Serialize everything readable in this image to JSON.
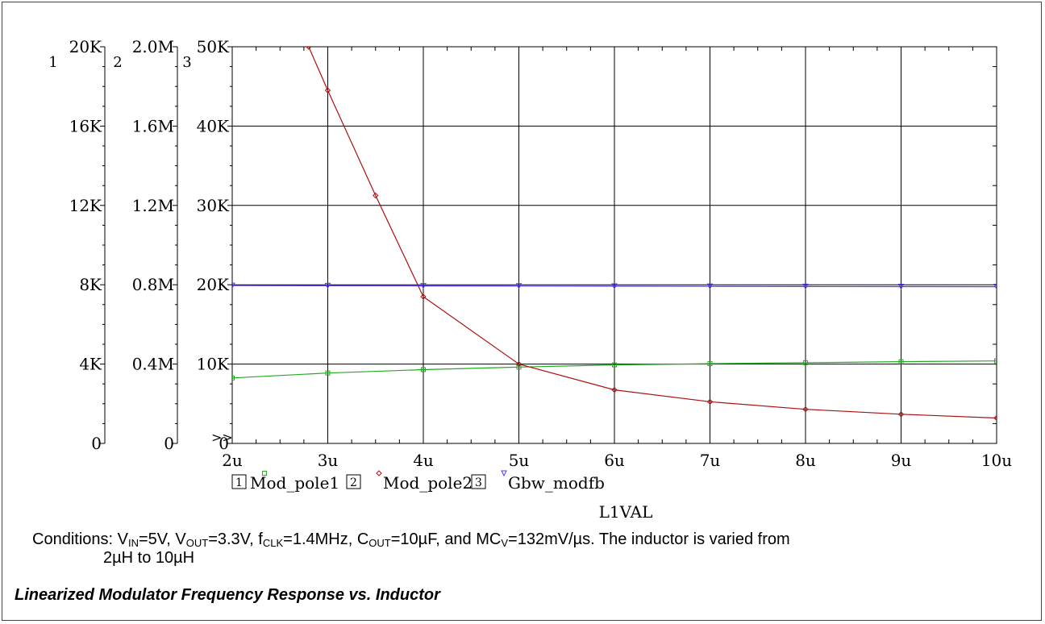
{
  "chart_data": {
    "type": "line",
    "xlabel": "L1VAL",
    "x_ticks": [
      "2u",
      "3u",
      "4u",
      "5u",
      "6u",
      "7u",
      "8u",
      "9u",
      "10u"
    ],
    "xlim": [
      2,
      10
    ],
    "x_unit_multiplier": 1e-06,
    "grid": true,
    "axes": [
      {
        "index_label": "1",
        "ticks": [
          "0",
          "4K",
          "8K",
          "12K",
          "16K",
          "20K"
        ],
        "ylim": [
          0,
          20000
        ]
      },
      {
        "index_label": "2",
        "ticks": [
          "0",
          "0.4M",
          "0.8M",
          "1.2M",
          "1.6M",
          "2.0M"
        ],
        "ylim": [
          0,
          2000000
        ]
      },
      {
        "index_label": "3",
        "ticks": [
          "0",
          "10K",
          "20K",
          "30K",
          "40K",
          "50K"
        ],
        "ylim": [
          0,
          50000
        ]
      }
    ],
    "axis_marker": ">>",
    "series": [
      {
        "name": "Mod_pole1",
        "legend_index": "1",
        "axis": 1,
        "color": "#22aa22",
        "marker": "square",
        "x": [
          2,
          3,
          4,
          5,
          6,
          7,
          8,
          9,
          10
        ],
        "y": [
          3300,
          3550,
          3720,
          3850,
          3960,
          4020,
          4070,
          4120,
          4160
        ]
      },
      {
        "name": "Mod_pole2",
        "legend_index": "2",
        "axis": 2,
        "color": "#aa1111",
        "marker": "diamond",
        "x": [
          2.8,
          3,
          3.5,
          4,
          5,
          6,
          7,
          8,
          9,
          10
        ],
        "y": [
          2000000,
          1780000,
          1250000,
          740000,
          400000,
          270000,
          210000,
          172000,
          147000,
          128000
        ]
      },
      {
        "name": "Gbw_modfb",
        "legend_index": "3",
        "axis": 3,
        "color": "#5533ee",
        "marker": "triangle-down",
        "x": [
          2,
          3,
          4,
          5,
          6,
          7,
          8,
          9,
          10
        ],
        "y": [
          19900,
          19880,
          19860,
          19840,
          19820,
          19800,
          19780,
          19770,
          19760
        ]
      }
    ]
  },
  "conditions": {
    "t1": "Conditions: V",
    "s1": "IN",
    "t2": "=5V, V",
    "s2": "OUT",
    "t3": "=3.3V, f",
    "s3": "CLK",
    "t4": "=1.4MHz, C",
    "s4": "OUT",
    "t5": "=10µF, and MC",
    "s5": "V",
    "t6": "=132mV/µs. The inductor is varied from",
    "line2": "2µH to 10µH"
  },
  "caption": "Linearized Modulator Frequency Response vs. Inductor"
}
